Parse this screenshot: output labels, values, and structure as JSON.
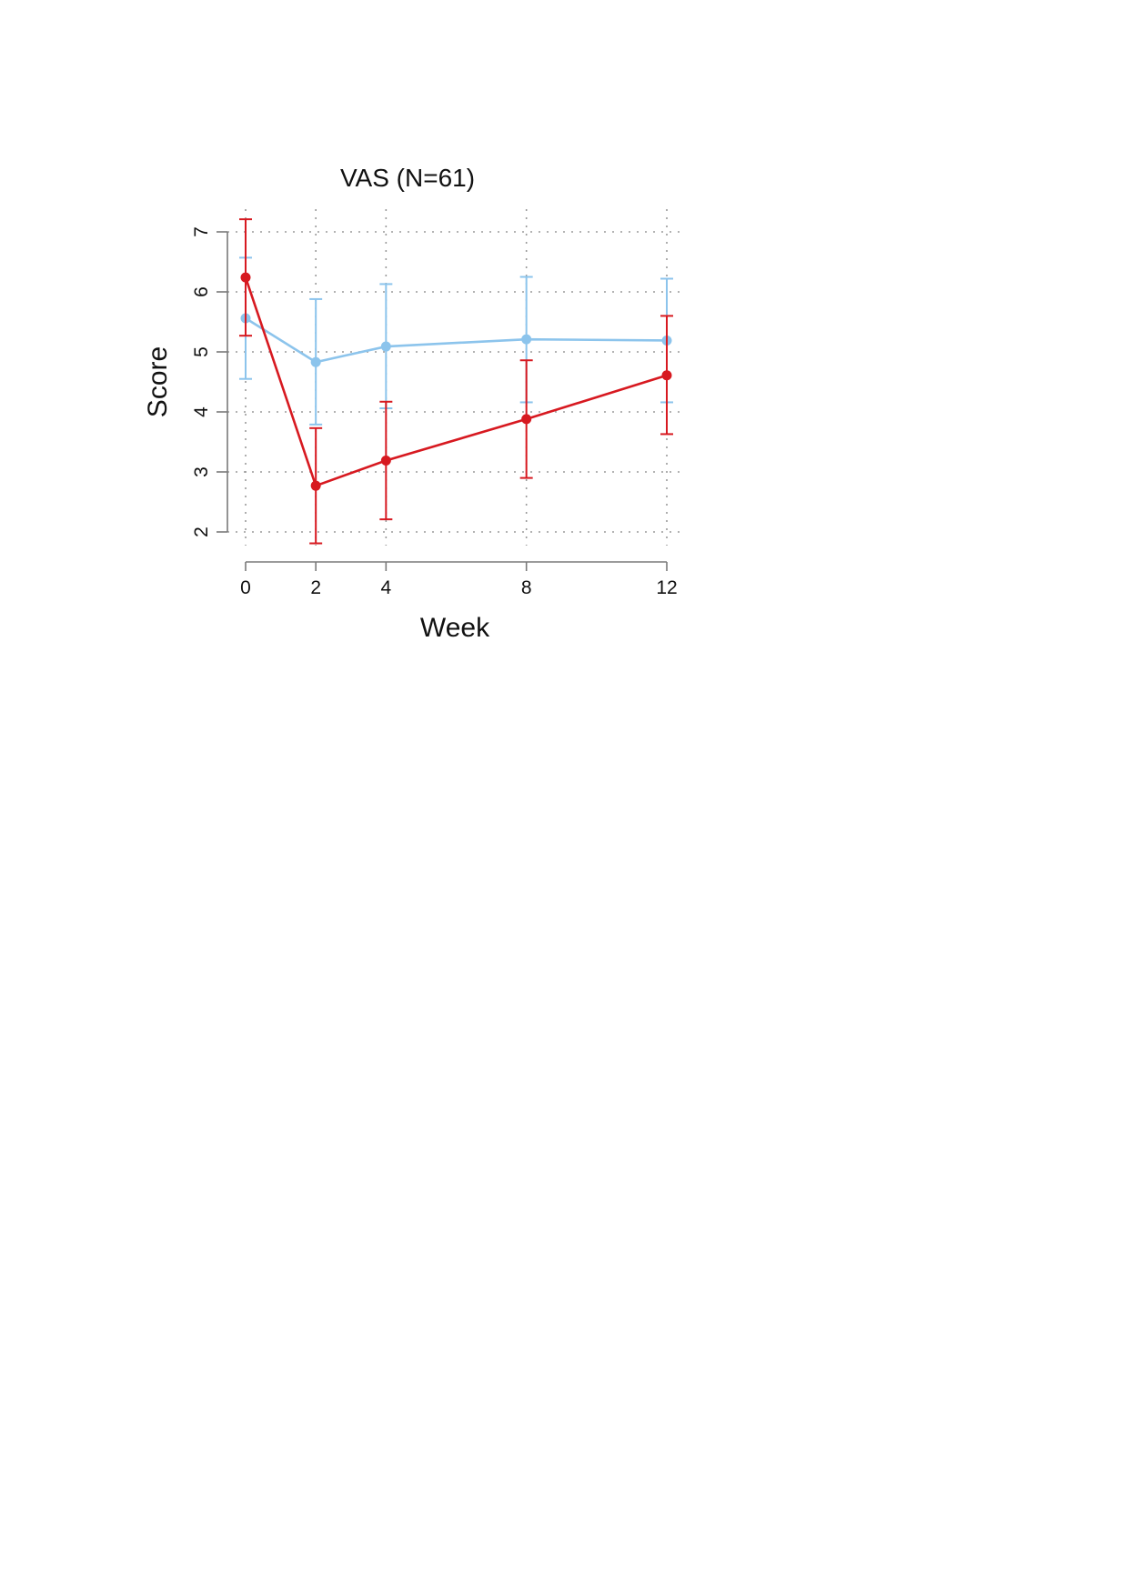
{
  "chart_data": {
    "type": "line",
    "title": "VAS (N=61)",
    "xlabel": "Week",
    "ylabel": "Score",
    "x": [
      0,
      2,
      4,
      8,
      12
    ],
    "xlim": [
      0,
      12
    ],
    "ylim": [
      2,
      7
    ],
    "xticks": [
      0,
      2,
      4,
      8,
      12
    ],
    "yticks": [
      2,
      3,
      4,
      5,
      6,
      7
    ],
    "grid": true,
    "series": [
      {
        "color": "#8cc4ec",
        "values": [
          5.56,
          4.83,
          5.09,
          5.21,
          5.19
        ],
        "err_low": [
          4.55,
          3.79,
          4.06,
          4.16,
          4.16
        ],
        "err_high": [
          6.57,
          5.88,
          6.13,
          6.25,
          6.22
        ]
      },
      {
        "color": "#d71920",
        "values": [
          6.24,
          2.77,
          3.19,
          3.88,
          4.61
        ],
        "err_low": [
          5.27,
          1.81,
          2.21,
          2.9,
          3.63
        ],
        "err_high": [
          7.21,
          3.73,
          4.17,
          4.86,
          5.6
        ]
      }
    ]
  }
}
